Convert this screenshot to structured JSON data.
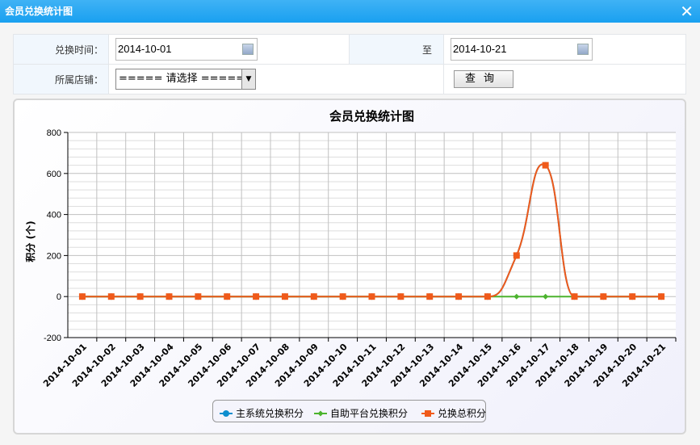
{
  "window": {
    "title": "会员兑换统计图",
    "close_icon": "close-icon"
  },
  "form": {
    "time_label": "兑换时间：",
    "start_date": "2014-10-01",
    "to_label": "至",
    "end_date": "2014-10-21",
    "store_label": "所属店铺：",
    "store_value": "===== 请选择 =====",
    "query_label": "查询",
    "calendar_icon": "calendar-icon"
  },
  "chart_data": {
    "type": "line",
    "title": "会员兑换统计图",
    "ylabel": "积分 (个)",
    "xlabel": "",
    "ylim": [
      -200,
      800
    ],
    "yticks": [
      -200,
      0,
      200,
      400,
      600,
      800
    ],
    "grid": true,
    "legend_position": "bottom",
    "categories": [
      "2014-10-01",
      "2014-10-02",
      "2014-10-03",
      "2014-10-04",
      "2014-10-05",
      "2014-10-06",
      "2014-10-07",
      "2014-10-08",
      "2014-10-09",
      "2014-10-10",
      "2014-10-11",
      "2014-10-12",
      "2014-10-13",
      "2014-10-14",
      "2014-10-15",
      "2014-10-16",
      "2014-10-17",
      "2014-10-18",
      "2014-10-19",
      "2014-10-20",
      "2014-10-21"
    ],
    "series": [
      {
        "name": "主系统兑换积分",
        "color": "#0d8ecf",
        "marker": "circle",
        "values": [
          0,
          0,
          0,
          0,
          0,
          0,
          0,
          0,
          0,
          0,
          0,
          0,
          0,
          0,
          0,
          200,
          640,
          0,
          0,
          0,
          0
        ]
      },
      {
        "name": "自助平台兑换积分",
        "color": "#4cb42e",
        "marker": "diamond",
        "values": [
          0,
          0,
          0,
          0,
          0,
          0,
          0,
          0,
          0,
          0,
          0,
          0,
          0,
          0,
          0,
          0,
          0,
          0,
          0,
          0,
          0
        ]
      },
      {
        "name": "兑换总积分",
        "color": "#f05a1a",
        "marker": "square",
        "values": [
          0,
          0,
          0,
          0,
          0,
          0,
          0,
          0,
          0,
          0,
          0,
          0,
          0,
          0,
          0,
          200,
          640,
          0,
          0,
          0,
          0
        ]
      }
    ]
  }
}
